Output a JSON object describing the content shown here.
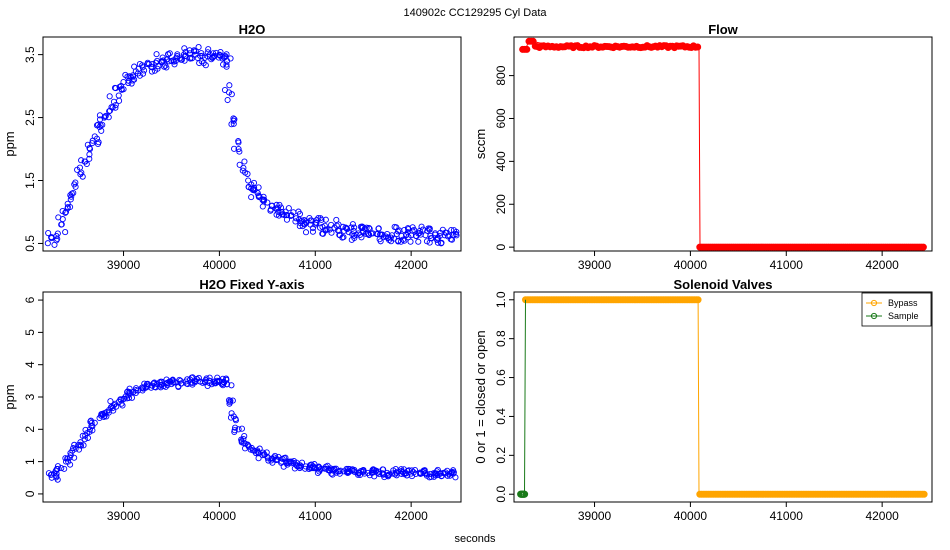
{
  "page": {
    "suptitle": "140902c    CC129295   Cyl Data",
    "xlabel": "seconds"
  },
  "chart_data": [
    {
      "type": "scatter",
      "title": "H2O",
      "xlabel": "",
      "ylabel": "ppm",
      "xlim": [
        38160,
        42520
      ],
      "ylim": [
        0.38,
        3.78
      ],
      "xticks": [
        39000,
        40000,
        41000,
        42000
      ],
      "xtick_labels": [
        "39000",
        "40000",
        "41000",
        "42000"
      ],
      "yticks": [
        0.5,
        1.5,
        2.5,
        3.5
      ],
      "ytick_labels": [
        "0.5",
        "1.5",
        "2.5",
        "3.5"
      ],
      "color": "#0000ff",
      "marker": "open-circle",
      "series": [
        {
          "name": "H2O",
          "x": [
            38250,
            38300,
            38350,
            38400,
            38450,
            38500,
            38550,
            38600,
            38650,
            38700,
            38750,
            38800,
            38850,
            38900,
            38950,
            39000,
            39050,
            39100,
            39150,
            39200,
            39250,
            39300,
            39350,
            39400,
            39450,
            39500,
            39550,
            39600,
            39650,
            39700,
            39750,
            39800,
            39850,
            39900,
            39950,
            40000,
            40050,
            40080,
            40100,
            40150,
            40200,
            40250,
            40300,
            40350,
            40400,
            40450,
            40500,
            40550,
            40600,
            40650,
            40700,
            40750,
            40800,
            40850,
            40900,
            40950,
            41000,
            41050,
            41100,
            41150,
            41200,
            41250,
            41300,
            41350,
            41400,
            41450,
            41500,
            41550,
            41600,
            41650,
            41700,
            41750,
            41800,
            41850,
            41900,
            41950,
            42000,
            42050,
            42100,
            42150,
            42200,
            42250,
            42300,
            42350,
            42400,
            42440
          ],
          "y": [
            0.6,
            0.55,
            0.8,
            1.0,
            1.2,
            1.4,
            1.6,
            1.8,
            2.0,
            2.2,
            2.35,
            2.5,
            2.6,
            2.75,
            2.85,
            2.95,
            3.05,
            3.15,
            3.2,
            3.3,
            3.35,
            3.35,
            3.4,
            3.38,
            3.42,
            3.4,
            3.45,
            3.42,
            3.48,
            3.45,
            3.5,
            3.48,
            3.45,
            3.5,
            3.48,
            3.5,
            3.45,
            3.4,
            2.9,
            2.4,
            2.0,
            1.7,
            1.5,
            1.35,
            1.3,
            1.2,
            1.15,
            1.1,
            1.05,
            1.0,
            0.95,
            0.95,
            0.9,
            0.85,
            0.85,
            0.8,
            0.8,
            0.75,
            0.78,
            0.72,
            0.75,
            0.7,
            0.7,
            0.68,
            0.7,
            0.66,
            0.68,
            0.65,
            0.66,
            0.65,
            0.64,
            0.65,
            0.63,
            0.65,
            0.62,
            0.64,
            0.63,
            0.62,
            0.64,
            0.63,
            0.62,
            0.64,
            0.62,
            0.63,
            0.62,
            0.63
          ]
        }
      ]
    },
    {
      "type": "line",
      "title": "Flow",
      "xlabel": "",
      "ylabel": "sccm",
      "xlim": [
        38160,
        42520
      ],
      "ylim": [
        -18,
        980
      ],
      "xticks": [
        39000,
        40000,
        41000,
        42000
      ],
      "xtick_labels": [
        "39000",
        "40000",
        "41000",
        "42000"
      ],
      "yticks": [
        0,
        200,
        400,
        600,
        800
      ],
      "ytick_labels": [
        "0",
        "200",
        "400",
        "600",
        "800"
      ],
      "color": "#ff0000",
      "marker": "filled-circle",
      "series": [
        {
          "name": "Flow",
          "x": [
            38250,
            38280,
            38320,
            38350,
            38400,
            38450,
            38500,
            38600,
            38700,
            38800,
            38900,
            39000,
            39100,
            39200,
            39300,
            39400,
            39500,
            39600,
            39700,
            39800,
            39900,
            40000,
            40050,
            40090,
            40100,
            40200,
            40300,
            40500,
            40700,
            40900,
            41100,
            41300,
            41500,
            41700,
            41900,
            42100,
            42300,
            42440
          ],
          "y": [
            925,
            920,
            970,
            960,
            955,
            950,
            945,
            940,
            940,
            938,
            937,
            936,
            936,
            935,
            935,
            934,
            934,
            933,
            933,
            933,
            932,
            932,
            932,
            932,
            0,
            0,
            0,
            0,
            0,
            0,
            0,
            0,
            0,
            0,
            0,
            0,
            0,
            0
          ]
        }
      ]
    },
    {
      "type": "scatter",
      "title": "H2O Fixed Y-axis",
      "xlabel": "",
      "ylabel": "ppm",
      "xlim": [
        38160,
        42520
      ],
      "ylim": [
        -0.25,
        6.25
      ],
      "xticks": [
        39000,
        40000,
        41000,
        42000
      ],
      "xtick_labels": [
        "39000",
        "40000",
        "41000",
        "42000"
      ],
      "yticks": [
        0,
        1,
        2,
        3,
        4,
        5,
        6
      ],
      "ytick_labels": [
        "0",
        "1",
        "2",
        "3",
        "4",
        "5",
        "6"
      ],
      "color": "#0000ff",
      "marker": "open-circle",
      "series": [
        {
          "name": "H2O",
          "x": [
            38250,
            38300,
            38350,
            38400,
            38450,
            38500,
            38550,
            38600,
            38650,
            38700,
            38750,
            38800,
            38850,
            38900,
            38950,
            39000,
            39050,
            39100,
            39150,
            39200,
            39250,
            39300,
            39350,
            39400,
            39450,
            39500,
            39550,
            39600,
            39650,
            39700,
            39750,
            39800,
            39850,
            39900,
            39950,
            40000,
            40050,
            40080,
            40100,
            40150,
            40200,
            40250,
            40300,
            40350,
            40400,
            40450,
            40500,
            40550,
            40600,
            40650,
            40700,
            40750,
            40800,
            40850,
            40900,
            40950,
            41000,
            41050,
            41100,
            41150,
            41200,
            41250,
            41300,
            41350,
            41400,
            41450,
            41500,
            41550,
            41600,
            41650,
            41700,
            41750,
            41800,
            41850,
            41900,
            41950,
            42000,
            42050,
            42100,
            42150,
            42200,
            42250,
            42300,
            42350,
            42400,
            42440
          ],
          "y": [
            0.6,
            0.55,
            0.8,
            1.0,
            1.2,
            1.4,
            1.6,
            1.8,
            2.0,
            2.2,
            2.35,
            2.5,
            2.6,
            2.75,
            2.85,
            2.95,
            3.05,
            3.15,
            3.2,
            3.3,
            3.35,
            3.35,
            3.4,
            3.38,
            3.42,
            3.4,
            3.45,
            3.42,
            3.48,
            3.45,
            3.5,
            3.48,
            3.45,
            3.5,
            3.48,
            3.5,
            3.45,
            3.4,
            2.9,
            2.4,
            2.0,
            1.7,
            1.5,
            1.35,
            1.3,
            1.2,
            1.15,
            1.1,
            1.05,
            1.0,
            0.95,
            0.95,
            0.9,
            0.85,
            0.85,
            0.8,
            0.8,
            0.75,
            0.78,
            0.72,
            0.75,
            0.7,
            0.7,
            0.68,
            0.7,
            0.66,
            0.68,
            0.65,
            0.66,
            0.65,
            0.64,
            0.65,
            0.63,
            0.65,
            0.62,
            0.64,
            0.63,
            0.62,
            0.64,
            0.63,
            0.62,
            0.64,
            0.62,
            0.63,
            0.62,
            0.63
          ]
        }
      ]
    },
    {
      "type": "line",
      "title": "Solenoid Valves",
      "xlabel": "",
      "ylabel": "0 or 1 = closed or open",
      "xlim": [
        38160,
        42520
      ],
      "ylim": [
        -0.04,
        1.04
      ],
      "xticks": [
        39000,
        40000,
        41000,
        42000
      ],
      "xtick_labels": [
        "39000",
        "40000",
        "41000",
        "42000"
      ],
      "yticks": [
        0.0,
        0.2,
        0.4,
        0.6,
        0.8,
        1.0
      ],
      "ytick_labels": [
        "0.0",
        "0.2",
        "0.4",
        "0.6",
        "0.8",
        "1.0"
      ],
      "legend": {
        "position": "top-right",
        "entries": [
          "Bypass",
          "Sample"
        ]
      },
      "series": [
        {
          "name": "Bypass",
          "color": "#ffa500",
          "x": [
            38280,
            38400,
            38600,
            38800,
            39000,
            39200,
            39400,
            39600,
            39800,
            40000,
            40080,
            40090,
            40200,
            40400,
            40600,
            40800,
            41000,
            41200,
            41400,
            41600,
            41800,
            42000,
            42200,
            42440
          ],
          "y": [
            1,
            1,
            1,
            1,
            1,
            1,
            1,
            1,
            1,
            1,
            1,
            0,
            0,
            0,
            0,
            0,
            0,
            0,
            0,
            0,
            0,
            0,
            0,
            0
          ]
        },
        {
          "name": "Sample",
          "color": "#1a7a1a",
          "x": [
            38230,
            38240,
            38250,
            38260,
            38270,
            38280
          ],
          "y": [
            0,
            0,
            0,
            0,
            0,
            1
          ]
        }
      ]
    }
  ]
}
